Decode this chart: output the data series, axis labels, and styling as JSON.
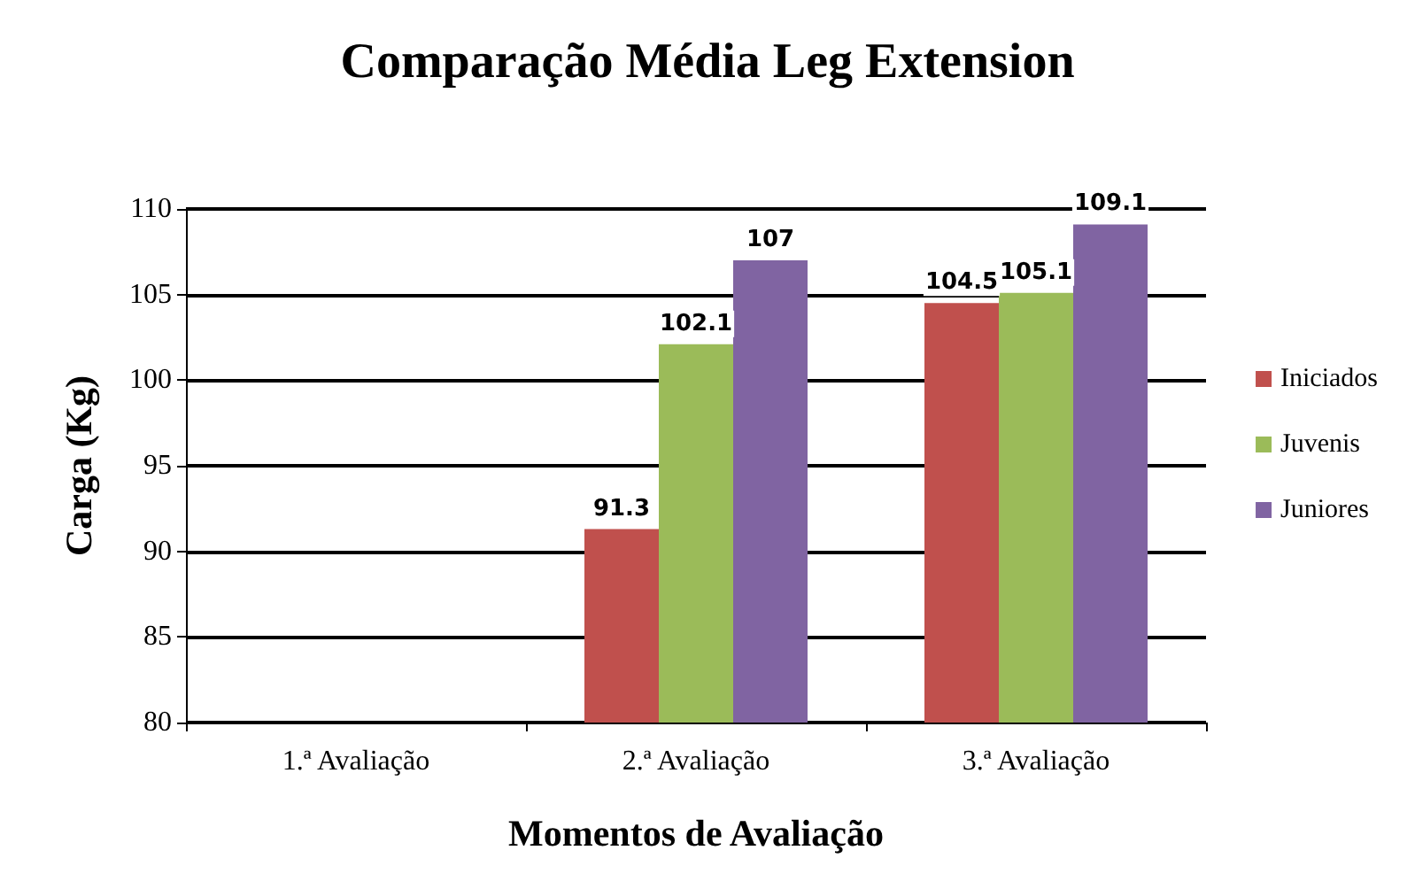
{
  "chart_data": {
    "type": "bar",
    "title": "Comparação Média Leg Extension",
    "xlabel": "Momentos de Avaliação",
    "ylabel": "Carga (Kg)",
    "categories": [
      "1.ª Avaliação",
      "2.ª Avaliação",
      "3.ª Avaliação"
    ],
    "series": [
      {
        "name": "Iniciados",
        "color": "#c0504d",
        "values": [
          null,
          91.3,
          104.5
        ]
      },
      {
        "name": "Juvenis",
        "color": "#9bbb59",
        "values": [
          null,
          102.1,
          105.1
        ]
      },
      {
        "name": "Juniores",
        "color": "#8064a2",
        "values": [
          null,
          107,
          109.1
        ]
      }
    ],
    "ylim": [
      80,
      110
    ],
    "yticks": [
      80,
      85,
      90,
      95,
      100,
      105,
      110
    ],
    "grid": "y",
    "legend": "right",
    "data_labels": true
  }
}
